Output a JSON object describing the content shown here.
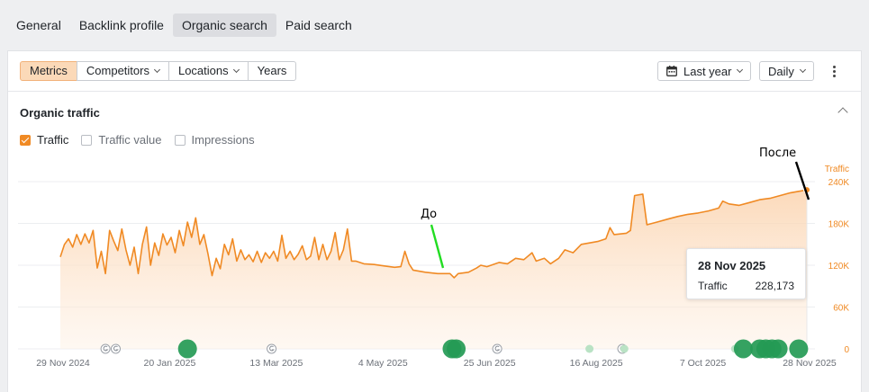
{
  "tabs": [
    "General",
    "Backlink profile",
    "Organic search",
    "Paid search"
  ],
  "active_tab": 2,
  "toolbar": {
    "segments": [
      {
        "label": "Metrics",
        "active": true,
        "dropdown": false
      },
      {
        "label": "Competitors",
        "active": false,
        "dropdown": true
      },
      {
        "label": "Locations",
        "active": false,
        "dropdown": true
      },
      {
        "label": "Years",
        "active": false,
        "dropdown": false
      }
    ],
    "period_label": "Last year",
    "interval_label": "Daily",
    "period_icon": "calendar-icon",
    "more_icon": "more-vertical-icon"
  },
  "section": {
    "title": "Organic traffic",
    "checkboxes": [
      {
        "label": "Traffic",
        "checked": true
      },
      {
        "label": "Traffic value",
        "checked": false
      },
      {
        "label": "Impressions",
        "checked": false
      }
    ]
  },
  "annotations": {
    "before": "До",
    "after": "После"
  },
  "tooltip": {
    "date": "28 Nov 2025",
    "metric": "Traffic",
    "value": "228,173"
  },
  "colors": {
    "accent": "#f08a24",
    "fill": "#fde3cb",
    "update_marker": "#249a55"
  },
  "chart_data": {
    "type": "area",
    "series": [
      {
        "name": "Traffic"
      }
    ],
    "axis_title": "Traffic",
    "ylim": [
      0,
      240000
    ],
    "yticks": [
      0,
      60000,
      120000,
      180000,
      240000
    ],
    "ytick_labels": [
      "0",
      "60K",
      "120K",
      "180K",
      "240K"
    ],
    "xtick_labels": [
      "29 Nov 2024",
      "20 Jan 2025",
      "13 Mar 2025",
      "4 May 2025",
      "25 Jun 2025",
      "16 Aug 2025",
      "7 Oct 2025",
      "28 Nov 2025"
    ],
    "xticks": [
      "2024-11-29",
      "2025-01-20",
      "2025-03-13",
      "2025-05-04",
      "2025-06-25",
      "2025-08-16",
      "2025-10-07",
      "2025-11-28"
    ],
    "points": [
      [
        "2024-11-29",
        132000
      ],
      [
        "2024-12-01",
        150000
      ],
      [
        "2024-12-03",
        158000
      ],
      [
        "2024-12-05",
        146000
      ],
      [
        "2024-12-07",
        164000
      ],
      [
        "2024-12-09",
        150000
      ],
      [
        "2024-12-11",
        165000
      ],
      [
        "2024-12-13",
        152000
      ],
      [
        "2024-12-15",
        170000
      ],
      [
        "2024-12-17",
        116000
      ],
      [
        "2024-12-19",
        140000
      ],
      [
        "2024-12-21",
        108000
      ],
      [
        "2024-12-23",
        170000
      ],
      [
        "2024-12-25",
        155000
      ],
      [
        "2024-12-27",
        141000
      ],
      [
        "2024-12-29",
        172000
      ],
      [
        "2024-12-31",
        142000
      ],
      [
        "2025-01-02",
        120000
      ],
      [
        "2025-01-04",
        146000
      ],
      [
        "2025-01-06",
        108000
      ],
      [
        "2025-01-08",
        150000
      ],
      [
        "2025-01-10",
        175000
      ],
      [
        "2025-01-12",
        120000
      ],
      [
        "2025-01-14",
        152000
      ],
      [
        "2025-01-16",
        134000
      ],
      [
        "2025-01-18",
        165000
      ],
      [
        "2025-01-20",
        149000
      ],
      [
        "2025-01-22",
        160000
      ],
      [
        "2025-01-24",
        138000
      ],
      [
        "2025-01-26",
        170000
      ],
      [
        "2025-01-28",
        148000
      ],
      [
        "2025-01-30",
        182000
      ],
      [
        "2025-02-01",
        160000
      ],
      [
        "2025-02-03",
        188000
      ],
      [
        "2025-02-05",
        150000
      ],
      [
        "2025-02-07",
        164000
      ],
      [
        "2025-02-09",
        136000
      ],
      [
        "2025-02-11",
        105000
      ],
      [
        "2025-02-13",
        130000
      ],
      [
        "2025-02-15",
        115000
      ],
      [
        "2025-02-17",
        150000
      ],
      [
        "2025-02-19",
        135000
      ],
      [
        "2025-02-21",
        158000
      ],
      [
        "2025-02-23",
        126000
      ],
      [
        "2025-02-25",
        142000
      ],
      [
        "2025-02-27",
        128000
      ],
      [
        "2025-03-01",
        135000
      ],
      [
        "2025-03-03",
        125000
      ],
      [
        "2025-03-05",
        140000
      ],
      [
        "2025-03-07",
        124000
      ],
      [
        "2025-03-09",
        138000
      ],
      [
        "2025-03-11",
        130000
      ],
      [
        "2025-03-13",
        140000
      ],
      [
        "2025-03-15",
        126000
      ],
      [
        "2025-03-17",
        163000
      ],
      [
        "2025-03-19",
        130000
      ],
      [
        "2025-03-21",
        140000
      ],
      [
        "2025-03-23",
        128000
      ],
      [
        "2025-03-25",
        136000
      ],
      [
        "2025-03-27",
        148000
      ],
      [
        "2025-03-29",
        128000
      ],
      [
        "2025-03-31",
        133000
      ],
      [
        "2025-04-02",
        160000
      ],
      [
        "2025-04-04",
        128000
      ],
      [
        "2025-04-06",
        150000
      ],
      [
        "2025-04-08",
        128000
      ],
      [
        "2025-04-10",
        140000
      ],
      [
        "2025-04-12",
        167000
      ],
      [
        "2025-04-14",
        128000
      ],
      [
        "2025-04-16",
        142000
      ],
      [
        "2025-04-18",
        172000
      ],
      [
        "2025-04-20",
        126000
      ],
      [
        "2025-04-22",
        126000
      ],
      [
        "2025-04-26",
        122000
      ],
      [
        "2025-05-01",
        121000
      ],
      [
        "2025-05-06",
        119000
      ],
      [
        "2025-05-11",
        117000
      ],
      [
        "2025-05-14",
        118000
      ],
      [
        "2025-05-16",
        140000
      ],
      [
        "2025-05-18",
        122000
      ],
      [
        "2025-05-20",
        113000
      ],
      [
        "2025-05-26",
        110000
      ],
      [
        "2025-06-01",
        108000
      ],
      [
        "2025-06-07",
        108000
      ],
      [
        "2025-06-09",
        102000
      ],
      [
        "2025-06-11",
        108000
      ],
      [
        "2025-06-16",
        110000
      ],
      [
        "2025-06-20",
        116000
      ],
      [
        "2025-06-22",
        120000
      ],
      [
        "2025-06-25",
        118000
      ],
      [
        "2025-07-01",
        124000
      ],
      [
        "2025-07-05",
        122000
      ],
      [
        "2025-07-09",
        130000
      ],
      [
        "2025-07-13",
        128000
      ],
      [
        "2025-07-17",
        138000
      ],
      [
        "2025-07-19",
        126000
      ],
      [
        "2025-07-23",
        130000
      ],
      [
        "2025-07-26",
        122000
      ],
      [
        "2025-07-30",
        130000
      ],
      [
        "2025-08-02",
        142000
      ],
      [
        "2025-08-06",
        138000
      ],
      [
        "2025-08-10",
        150000
      ],
      [
        "2025-08-14",
        152000
      ],
      [
        "2025-08-18",
        154000
      ],
      [
        "2025-08-22",
        158000
      ],
      [
        "2025-08-24",
        174000
      ],
      [
        "2025-08-26",
        164000
      ],
      [
        "2025-09-01",
        166000
      ],
      [
        "2025-09-03",
        170000
      ],
      [
        "2025-09-05",
        220000
      ],
      [
        "2025-09-09",
        222000
      ],
      [
        "2025-09-11",
        178000
      ],
      [
        "2025-09-16",
        182000
      ],
      [
        "2025-09-21",
        186000
      ],
      [
        "2025-09-26",
        190000
      ],
      [
        "2025-10-01",
        193000
      ],
      [
        "2025-10-06",
        195000
      ],
      [
        "2025-10-11",
        198000
      ],
      [
        "2025-10-16",
        202000
      ],
      [
        "2025-10-18",
        212000
      ],
      [
        "2025-10-21",
        208000
      ],
      [
        "2025-10-26",
        206000
      ],
      [
        "2025-10-31",
        210000
      ],
      [
        "2025-11-05",
        214000
      ],
      [
        "2025-11-10",
        216000
      ],
      [
        "2025-11-15",
        220000
      ],
      [
        "2025-11-20",
        224000
      ],
      [
        "2025-11-24",
        226000
      ],
      [
        "2025-11-28",
        228173
      ]
    ],
    "google_update_markers": [
      "2024-12-21",
      "2024-12-26",
      "2025-03-12",
      "2025-06-30",
      "2025-08-30"
    ],
    "event_markers": [
      {
        "date": "2025-01-30",
        "size": "large"
      },
      {
        "date": "2025-06-08",
        "size": "large"
      },
      {
        "date": "2025-06-10",
        "size": "large"
      },
      {
        "date": "2025-08-14",
        "size": "small"
      },
      {
        "date": "2025-08-31",
        "size": "small"
      },
      {
        "date": "2025-10-24",
        "size": "small"
      },
      {
        "date": "2025-10-28",
        "size": "large"
      },
      {
        "date": "2025-11-05",
        "size": "large"
      },
      {
        "date": "2025-11-08",
        "size": "large"
      },
      {
        "date": "2025-11-11",
        "size": "large"
      },
      {
        "date": "2025-11-14",
        "size": "large"
      },
      {
        "date": "2025-11-24",
        "size": "large"
      }
    ]
  }
}
